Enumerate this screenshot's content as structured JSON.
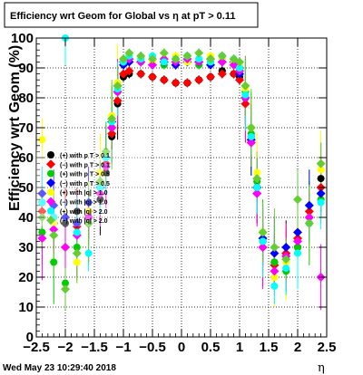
{
  "chart_data": {
    "type": "scatter",
    "title": "Efficiency wrt Geom for Global vs   η at pT > 0.11",
    "xlabel": "η",
    "ylabel": "Efficiency wrt Geom (%)",
    "xlim": [
      -2.5,
      2.5
    ],
    "ylim": [
      0,
      100
    ],
    "grid": true,
    "legend_position": "left-middle",
    "x_ticks": [
      "−2.5",
      "−2",
      "−1.5",
      "−1",
      "−0.5",
      "0",
      "0.5",
      "1",
      "1.5",
      "2",
      "2.5"
    ],
    "y_ticks": [
      "0",
      "10",
      "20",
      "30",
      "40",
      "50",
      "60",
      "70",
      "80",
      "90",
      "100"
    ],
    "footer": "Wed May 23 10:29:40 2018",
    "series": [
      {
        "name": "(+) with p T > 0.1",
        "color": "#000000",
        "x": [
          -2.4,
          -2.2,
          -2.0,
          -1.8,
          -1.6,
          -1.4,
          -1.3,
          -1.2,
          -1.1,
          -1.0,
          -0.9,
          -0.7,
          -0.5,
          -0.3,
          -0.1,
          0.1,
          0.3,
          0.5,
          0.7,
          0.9,
          1.0,
          1.1,
          1.2,
          1.3,
          1.4,
          1.6,
          1.8,
          2.0,
          2.2,
          2.4
        ],
        "y": [
          45,
          40,
          38,
          42,
          40,
          46,
          55,
          67,
          78,
          87,
          88,
          88,
          87,
          86,
          85,
          85,
          86,
          87,
          89,
          88,
          87,
          80,
          67,
          50,
          32,
          25,
          27,
          30,
          40,
          53
        ]
      },
      {
        "name": "(−) with p T > 0.1",
        "color": "#ff0000",
        "x": [
          -2.4,
          -2.2,
          -2.0,
          -1.8,
          -1.6,
          -1.4,
          -1.3,
          -1.2,
          -1.1,
          -1.0,
          -0.9,
          -0.7,
          -0.5,
          -0.3,
          -0.1,
          0.1,
          0.3,
          0.5,
          0.7,
          0.9,
          1.0,
          1.1,
          1.2,
          1.3,
          1.4,
          1.6,
          1.8,
          2.0,
          2.2,
          2.4
        ],
        "y": [
          42,
          38,
          40,
          37,
          42,
          48,
          58,
          68,
          79,
          88,
          89,
          88,
          87,
          86,
          85,
          85,
          86,
          87,
          88,
          88,
          86,
          78,
          65,
          48,
          30,
          24,
          28,
          33,
          42,
          50
        ]
      },
      {
        "name": "(+) with p T > 0.5",
        "color": "#00cc00",
        "x": [
          -2.4,
          -2.2,
          -2.0,
          -1.8,
          -1.6,
          -1.4,
          -1.3,
          -1.2,
          -1.1,
          -1.0,
          -0.9,
          -0.7,
          -0.5,
          -0.3,
          -0.1,
          0.1,
          0.3,
          0.5,
          0.7,
          0.9,
          1.0,
          1.1,
          1.2,
          1.3,
          1.4,
          1.6,
          1.8,
          2.0,
          2.2,
          2.4
        ],
        "y": [
          35,
          25,
          18,
          30,
          38,
          50,
          57,
          70,
          82,
          92,
          93,
          92,
          93,
          91,
          92,
          92,
          91,
          92,
          93,
          92,
          90,
          82,
          68,
          52,
          35,
          25,
          22,
          30,
          38,
          46
        ]
      },
      {
        "name": "(−) with p T > 0.5",
        "color": "#0000ff",
        "x": [
          -2.4,
          -2.2,
          -2.0,
          -1.8,
          -1.6,
          -1.4,
          -1.3,
          -1.2,
          -1.1,
          -1.0,
          -0.9,
          -0.7,
          -0.5,
          -0.3,
          -0.1,
          0.1,
          0.3,
          0.5,
          0.7,
          0.9,
          1.0,
          1.1,
          1.2,
          1.3,
          1.4,
          1.6,
          1.8,
          2.0,
          2.2,
          2.4
        ],
        "y": [
          48,
          44,
          40,
          38,
          45,
          50,
          60,
          72,
          84,
          91,
          92,
          92,
          91,
          92,
          91,
          92,
          92,
          91,
          92,
          92,
          88,
          80,
          66,
          50,
          33,
          28,
          30,
          35,
          44,
          48
        ]
      },
      {
        "name": "(+) with |q| > 1.0",
        "color": "#ffff00",
        "x": [
          -2.4,
          -2.2,
          -2.0,
          -1.8,
          -1.6,
          -1.4,
          -1.3,
          -1.2,
          -1.1,
          -1.0,
          -0.9,
          -0.7,
          -0.5,
          -0.3,
          -0.1,
          0.1,
          0.3,
          0.5,
          0.7,
          0.9,
          1.0,
          1.1,
          1.2,
          1.3,
          1.4,
          1.6,
          1.8,
          2.0,
          2.2,
          2.4
        ],
        "y": [
          66,
          38,
          30,
          25,
          42,
          55,
          60,
          74,
          85,
          93,
          94,
          93,
          92,
          93,
          94,
          92,
          93,
          94,
          93,
          92,
          91,
          83,
          70,
          55,
          35,
          20,
          25,
          28,
          40,
          56
        ]
      },
      {
        "name": "(−) with |q| > 1.0",
        "color": "#ff00ff",
        "x": [
          -2.4,
          -2.2,
          -2.0,
          -1.8,
          -1.6,
          -1.4,
          -1.3,
          -1.2,
          -1.1,
          -1.0,
          -0.9,
          -0.7,
          -0.5,
          -0.3,
          -0.1,
          0.1,
          0.3,
          0.5,
          0.7,
          0.9,
          1.0,
          1.1,
          1.2,
          1.3,
          1.4,
          1.6,
          1.8,
          2.0,
          2.2,
          2.4
        ],
        "y": [
          33,
          36,
          30,
          34,
          40,
          48,
          57,
          70,
          82,
          92,
          93,
          92,
          91,
          93,
          92,
          93,
          92,
          93,
          92,
          91,
          89,
          80,
          65,
          48,
          30,
          22,
          27,
          32,
          40,
          20
        ]
      },
      {
        "name": "(+) with |q| > 2.0",
        "color": "#00ffff",
        "x": [
          -2.4,
          -2.2,
          -2.0,
          -1.8,
          -1.6,
          -1.4,
          -1.3,
          -1.2,
          -1.1,
          -1.0,
          -0.9,
          -0.7,
          -0.5,
          -0.3,
          -0.1,
          0.1,
          0.3,
          0.5,
          0.7,
          0.9,
          1.0,
          1.1,
          1.2,
          1.3,
          1.4,
          1.6,
          1.8,
          2.0,
          2.2,
          2.4
        ],
        "y": [
          45,
          40,
          100,
          35,
          28,
          50,
          60,
          72,
          83,
          92,
          94,
          93,
          94,
          92,
          93,
          94,
          93,
          92,
          94,
          93,
          90,
          81,
          67,
          50,
          32,
          17,
          23,
          28,
          38,
          45
        ]
      },
      {
        "name": "(−) with |q| > 2.0",
        "color": "#66cc33",
        "x": [
          -2.4,
          -2.2,
          -2.0,
          -1.8,
          -1.6,
          -1.4,
          -1.3,
          -1.2,
          -1.1,
          -1.0,
          -0.9,
          -0.7,
          -0.5,
          -0.3,
          -0.1,
          0.1,
          0.3,
          0.5,
          0.7,
          0.9,
          1.0,
          1.1,
          1.2,
          1.3,
          1.4,
          1.6,
          1.8,
          2.0,
          2.2,
          2.4
        ],
        "y": [
          40,
          34,
          16,
          28,
          38,
          52,
          62,
          73,
          84,
          93,
          95,
          94,
          93,
          95,
          93,
          94,
          95,
          93,
          94,
          93,
          92,
          84,
          70,
          53,
          35,
          30,
          26,
          46,
          38,
          58
        ]
      }
    ]
  }
}
